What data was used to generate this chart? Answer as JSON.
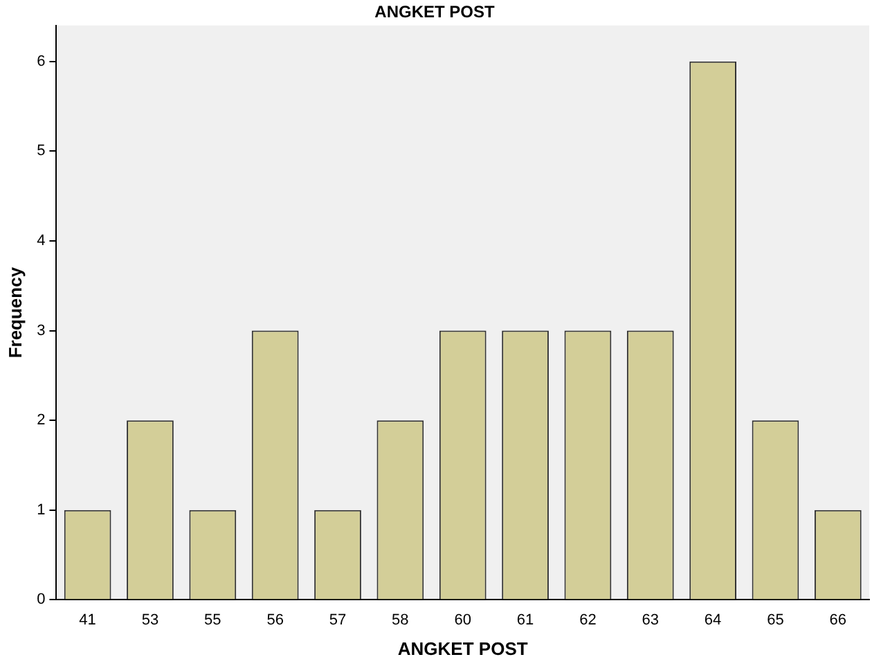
{
  "chart_data": {
    "type": "bar",
    "title": "ANGKET POST",
    "xlabel": "ANGKET POST",
    "ylabel": "Frequency",
    "categories": [
      "41",
      "53",
      "55",
      "56",
      "57",
      "58",
      "60",
      "61",
      "62",
      "63",
      "64",
      "65",
      "66"
    ],
    "values": [
      1,
      2,
      1,
      3,
      1,
      2,
      3,
      3,
      3,
      3,
      6,
      2,
      1
    ],
    "color": "#d3ce98",
    "ylim": [
      0,
      6.4
    ],
    "yticks": [
      0,
      1,
      2,
      3,
      4,
      5,
      6
    ],
    "grid": false,
    "legend": false
  }
}
